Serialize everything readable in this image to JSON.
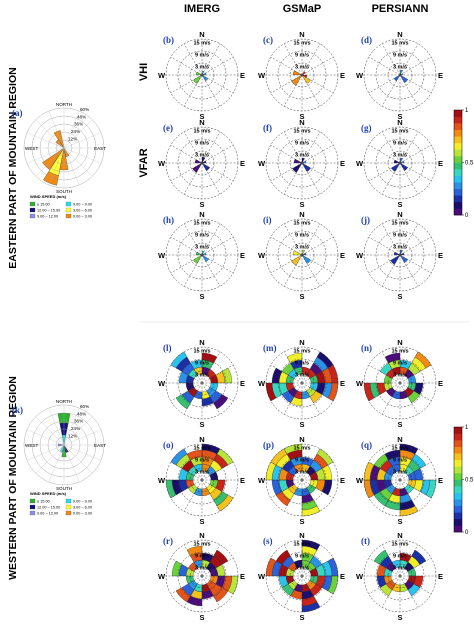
{
  "columns": [
    "IMERG",
    "GSMaP",
    "PERSIANN"
  ],
  "regions": {
    "east": "EASTERN PART OF MOUNTAIN REGION",
    "west": "WESTERN PART OF MOUNTAIN REGION"
  },
  "row_labels": [
    "VHI",
    "VFAR"
  ],
  "directions": {
    "n": "N",
    "s": "S",
    "e": "E",
    "w": "W"
  },
  "rings": [
    "3 m/s",
    "9 m/s",
    "15 m/s"
  ],
  "colorbar": {
    "ticks": [
      "1",
      "0.5",
      "0"
    ],
    "colors": [
      "#4a0e7a",
      "#1b0f6b",
      "#1b2fa6",
      "#2a63d9",
      "#2a93e8",
      "#29c3ee",
      "#3ad7c0",
      "#36c070",
      "#6bd23c",
      "#b9e43a",
      "#f2ee2a",
      "#f5c21d",
      "#f08a12",
      "#e2541a",
      "#c8241a",
      "#a30f12"
    ]
  },
  "windrose": {
    "title": "WIND SPEED (m/s)",
    "directions": {
      "north": "NORTH",
      "south": "SOUTH",
      "east": "EAST",
      "west": "WEST"
    },
    "east_rings": [
      "12%",
      "24%",
      "36%",
      "48%",
      "60%"
    ],
    "west_rings": [
      "12%",
      "24%",
      "36%",
      "48%",
      "60%"
    ],
    "legend": [
      {
        "label": "≥ 15.00",
        "color": "#2fb12f"
      },
      {
        "label": "9.00 – 9.00",
        "color": "#23e0ee"
      },
      {
        "label": "12.00 – 15.00",
        "color": "#13137e"
      },
      {
        "label": "3.00 – 6.00",
        "color": "#ffff3a"
      },
      {
        "label": "9.00 – 12.00",
        "color": "#8f8fe6"
      },
      {
        "label": "0.00 – 3.00",
        "color": "#f08a12"
      }
    ]
  },
  "chart_data": [
    {
      "type": "polar",
      "id": "a",
      "label": "(a)",
      "region": "east",
      "values_unit": "%"
    },
    {
      "type": "polar",
      "id": "b",
      "label": "(b)",
      "product": "IMERG",
      "index": "VHI"
    },
    {
      "type": "polar",
      "id": "c",
      "label": "(c)",
      "product": "GSMaP",
      "index": "VHI"
    },
    {
      "type": "polar",
      "id": "d",
      "label": "(d)",
      "product": "PERSIANN",
      "index": "VHI"
    },
    {
      "type": "polar",
      "id": "e",
      "label": "(e)",
      "product": "IMERG",
      "index": "VFAR"
    },
    {
      "type": "polar",
      "id": "f",
      "label": "(f)",
      "product": "GSMaP",
      "index": "VFAR"
    },
    {
      "type": "polar",
      "id": "g",
      "label": "(g)",
      "product": "PERSIANN",
      "index": "VFAR"
    },
    {
      "type": "polar",
      "id": "h",
      "label": "(h)",
      "product": "IMERG"
    },
    {
      "type": "polar",
      "id": "i",
      "label": "(i)",
      "product": "GSMaP"
    },
    {
      "type": "polar",
      "id": "j",
      "label": "(j)",
      "product": "PERSIANN"
    },
    {
      "type": "polar",
      "id": "k",
      "label": "(k)",
      "region": "west",
      "values_unit": "%"
    },
    {
      "type": "polar",
      "id": "l",
      "label": "(l)",
      "product": "IMERG"
    },
    {
      "type": "polar",
      "id": "m",
      "label": "(m)",
      "product": "GSMaP"
    },
    {
      "type": "polar",
      "id": "n",
      "label": "(n)",
      "product": "PERSIANN"
    },
    {
      "type": "polar",
      "id": "o",
      "label": "(o)",
      "product": "IMERG"
    },
    {
      "type": "polar",
      "id": "p",
      "label": "(p)",
      "product": "GSMaP"
    },
    {
      "type": "polar",
      "id": "q",
      "label": "(q)",
      "product": "PERSIANN"
    },
    {
      "type": "polar",
      "id": "r",
      "label": "(r)",
      "product": "IMERG"
    },
    {
      "type": "polar",
      "id": "s",
      "label": "(s)",
      "product": "GSMaP"
    },
    {
      "type": "polar",
      "id": "t",
      "label": "(t)",
      "product": "PERSIANN"
    }
  ]
}
